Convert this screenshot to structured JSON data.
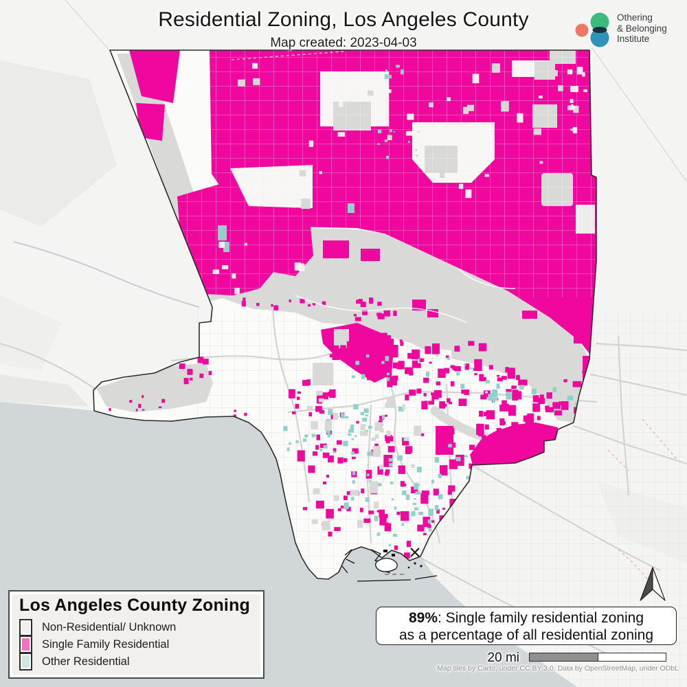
{
  "map": {
    "title": "Residential Zoning, Los Angeles County",
    "subtitle": "Map created: 2023-04-03",
    "colors": {
      "single_family": "#f0079e",
      "other_residential": "#92d0ca",
      "non_residential_swatch": "#f0eeee",
      "single_family_swatch": "#ef72bd",
      "other_residential_swatch": "#cfe6e2",
      "mountain_gray": "#d9d9d7",
      "ocean": "#d1d6d9",
      "county_fill": "#fbfbf9",
      "outside_fill": "#f4f4f2"
    }
  },
  "logo": {
    "line1": "Othering",
    "line2": "& Belonging",
    "line3": "Institute",
    "colors": {
      "salmon": "#ed7765",
      "green": "#3dba7e",
      "blue": "#2d93b8",
      "overlap": "#16343c"
    }
  },
  "legend": {
    "title": "Los Angeles County Zoning",
    "items": [
      {
        "label": "Non-Residential/ Unknown",
        "color": "#f0eeee"
      },
      {
        "label": "Single Family Residential",
        "color": "#ef72bd"
      },
      {
        "label": "Other Residential",
        "color": "#cfe6e2"
      }
    ]
  },
  "annotation": {
    "value": "89%",
    "line1_rest": ": Single family residential zoning",
    "line2": "as a percentage of all residential zoning"
  },
  "scale_bar": {
    "label": "20 mi"
  },
  "attribution": "Map tiles by Carto, under CC BY 3.0. Data by OpenStreetMap, under ODbL"
}
